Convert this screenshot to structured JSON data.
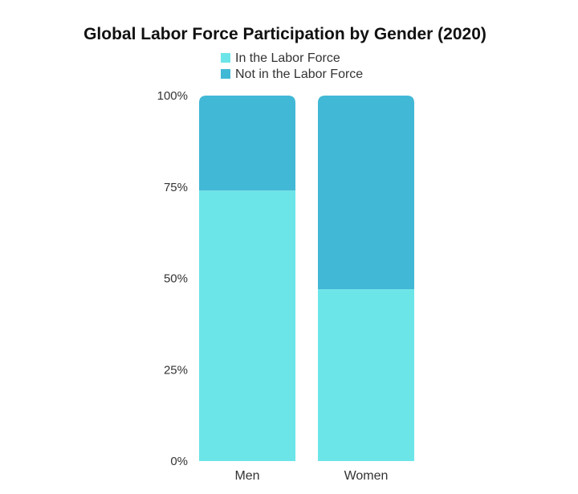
{
  "chart_data": {
    "type": "bar",
    "stacked": true,
    "title": "Global Labor Force Participation by Gender (2020)",
    "categories": [
      "Men",
      "Women"
    ],
    "series": [
      {
        "name": "In the Labor Force",
        "values": [
          74,
          47
        ],
        "color": "#6ce5e8"
      },
      {
        "name": "Not in the Labor Force",
        "values": [
          26,
          53
        ],
        "color": "#41b8d5"
      }
    ],
    "y_ticks": [
      "0%",
      "25%",
      "50%",
      "75%",
      "100%"
    ],
    "ylim": [
      0,
      100
    ],
    "grid": false,
    "legend_position": "top-center"
  }
}
